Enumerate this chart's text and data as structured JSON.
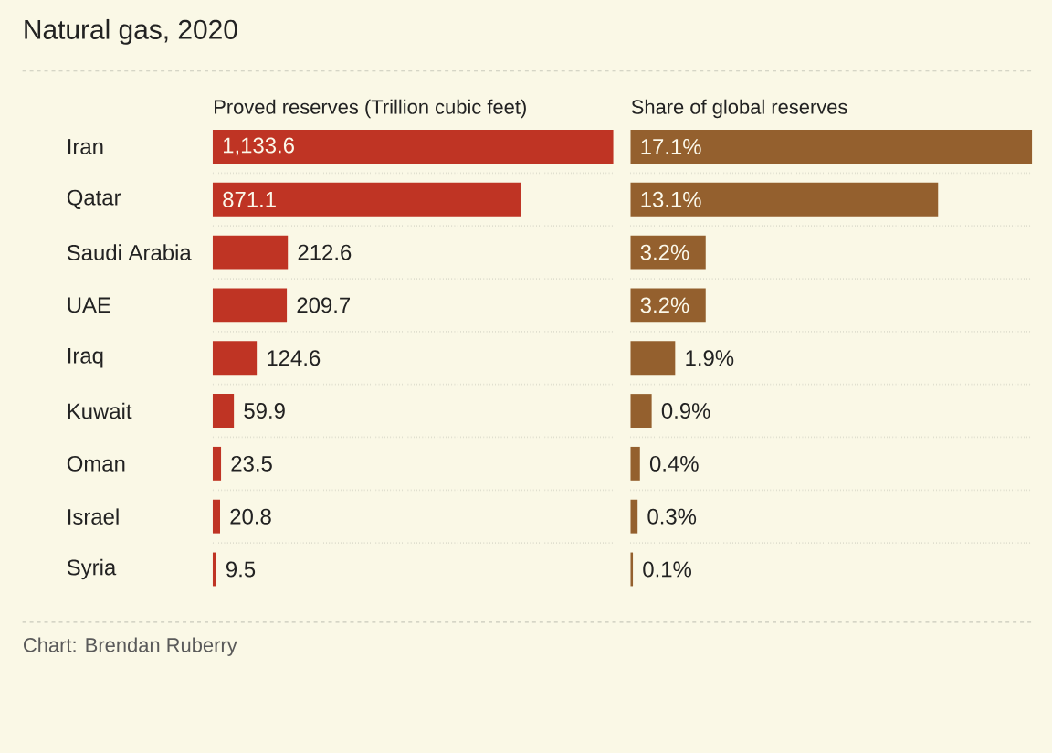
{
  "chart_data": [
    {
      "type": "bar",
      "orientation": "horizontal",
      "title": "Natural gas, 2020",
      "subtitle": "Proved reserves (Trillion cubic feet)",
      "categories": [
        "Iran",
        "Qatar",
        "Saudi Arabia",
        "UAE",
        "Iraq",
        "Kuwait",
        "Oman",
        "Israel",
        "Syria"
      ],
      "values": [
        1133.6,
        871.1,
        212.6,
        209.7,
        124.6,
        59.9,
        23.5,
        20.8,
        9.5
      ],
      "value_labels": [
        "1,133.6",
        "871.1",
        "212.6",
        "209.7",
        "124.6",
        "59.9",
        "23.5",
        "20.8",
        "9.5"
      ],
      "color": "#bf3424",
      "grid": "y",
      "tick_labels": "y",
      "annotations": [
        "Chart: Brendan Ruberry"
      ]
    },
    {
      "type": "bar",
      "orientation": "horizontal",
      "title": "Share of global reserves",
      "categories": [
        null,
        null,
        null,
        null,
        null,
        null,
        null,
        null,
        null
      ],
      "values": [
        17.1,
        13.1,
        3.2,
        3.2,
        1.9,
        0.9,
        0.4,
        0.3,
        0.1
      ],
      "value_labels": [
        "17.1%",
        "13.1%",
        "3.2%",
        "3.2%",
        "1.9%",
        "0.9%",
        "0.4%",
        "0.3%",
        "0.1%"
      ],
      "color": "#94602e",
      "grid": "y",
      "tick_labels": false
    }
  ]
}
